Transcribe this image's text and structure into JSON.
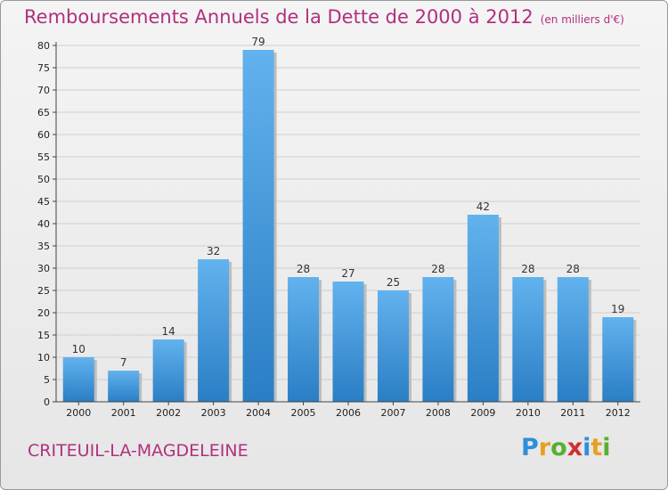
{
  "title": "Remboursements Annuels de la Dette de 2000 à 2012",
  "subtitle": "(en milliers d'€)",
  "place_name": "CRITEUIL-LA-MAGDELEINE",
  "logo": {
    "letters": [
      "P",
      "r",
      "o",
      "x",
      "i",
      "t",
      "i"
    ],
    "colors": [
      "#2f8fd8",
      "#e8a020",
      "#55b030",
      "#d03030",
      "#2f8fd8",
      "#e8a020",
      "#55b030"
    ]
  },
  "colors": {
    "bar_light": "#62b2ee",
    "bar_dark": "#2a7ec4",
    "title": "#b0307e",
    "grid": "#cfcfcf"
  },
  "chart_data": {
    "type": "bar",
    "categories": [
      "2000",
      "2001",
      "2002",
      "2003",
      "2004",
      "2005",
      "2006",
      "2007",
      "2008",
      "2009",
      "2010",
      "2011",
      "2012"
    ],
    "values": [
      10,
      7,
      14,
      32,
      79,
      28,
      27,
      25,
      28,
      42,
      28,
      28,
      19
    ],
    "ylim": [
      0,
      80
    ],
    "yticks": [
      0,
      5,
      10,
      15,
      20,
      25,
      30,
      35,
      40,
      45,
      50,
      55,
      60,
      65,
      70,
      75,
      80
    ],
    "grid": true,
    "data_labels": true
  }
}
